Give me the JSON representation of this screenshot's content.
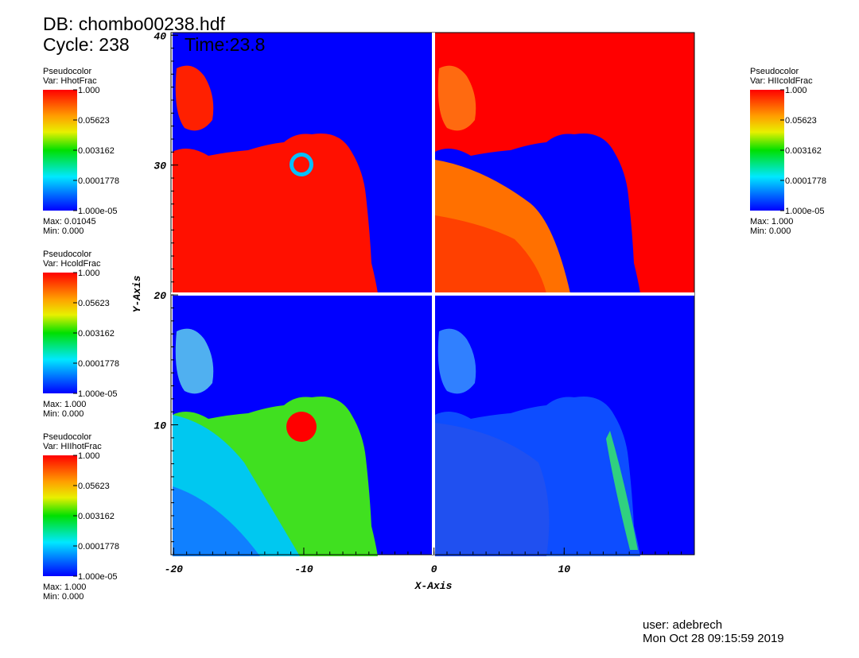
{
  "header": {
    "db": "DB: chombo00238.hdf",
    "cycle": "Cycle: 238",
    "time": "Time:23.8"
  },
  "legends": [
    {
      "title": "Pseudocolor",
      "var": "Var: HhotFrac",
      "labels": [
        "1.000",
        "0.05623",
        "0.003162",
        "0.0001778",
        "1.000e-05"
      ],
      "max": "Max: 0.01045",
      "min": "Min: 0.000"
    },
    {
      "title": "Pseudocolor",
      "var": "Var: HcoldFrac",
      "labels": [
        "1.000",
        "0.05623",
        "0.003162",
        "0.0001778",
        "1.000e-05"
      ],
      "max": "Max:  1.000",
      "min": "Min: 0.000"
    },
    {
      "title": "Pseudocolor",
      "var": "Var: HIIhotFrac",
      "labels": [
        "1.000",
        "0.05623",
        "0.003162",
        "0.0001778",
        "1.000e-05"
      ],
      "max": "Max:  1.000",
      "min": "Min: 0.000"
    },
    {
      "title": "Pseudocolor",
      "var": "Var: HIIcoldFrac",
      "labels": [
        "1.000",
        "0.05623",
        "0.003162",
        "0.0001778",
        "1.000e-05"
      ],
      "max": "Max:  1.000",
      "min": "Min: 0.000"
    }
  ],
  "axes": {
    "x": {
      "title": "X-Axis",
      "lim": [
        -20.2,
        20
      ],
      "ticks": [
        -20,
        -10,
        0,
        10
      ]
    },
    "y": {
      "title": "Y-Axis",
      "lim": [
        0,
        40.2
      ],
      "ticks": [
        10,
        20,
        30,
        40
      ]
    }
  },
  "footer": {
    "user": "user: adebrech",
    "date": "Mon Oct 28 09:15:59 2019"
  }
}
